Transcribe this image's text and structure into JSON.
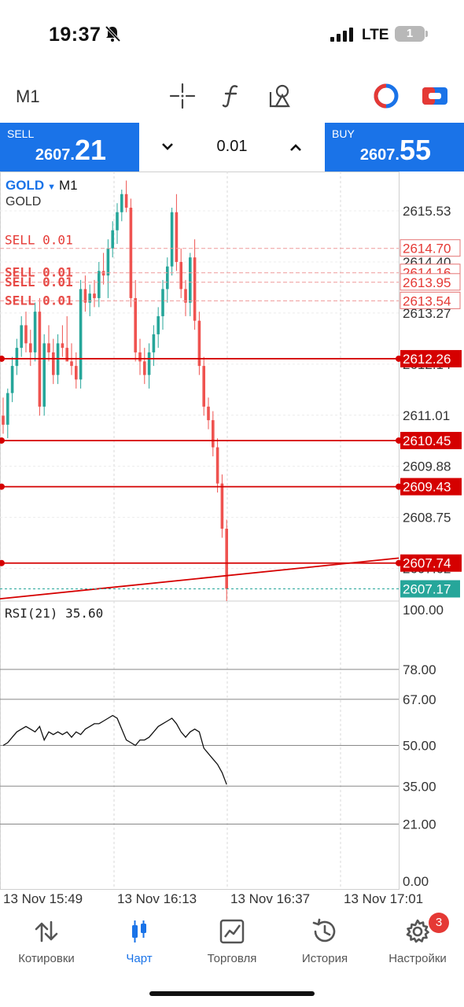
{
  "status_bar": {
    "time": "19:37",
    "network": "LTE",
    "battery": "1"
  },
  "toolbar": {
    "timeframe": "M1"
  },
  "trade": {
    "sell_label": "SELL",
    "sell_price_small": "2607.",
    "sell_price_big": "21",
    "lot": "0.01",
    "buy_label": "BUY",
    "buy_price_small": "2607.",
    "buy_price_big": "55"
  },
  "chart": {
    "symbol": "GOLD",
    "timeframe": "M1",
    "description": "GOLD",
    "sell_order_label": "SELL 0.01",
    "rsi_label": "RSI(21) 35.60"
  },
  "chart_data": {
    "type": "candlestick",
    "price_axis_labels": [
      "2615.53",
      "2614.40",
      "2613.27",
      "2612.14",
      "2611.01",
      "2609.88",
      "2608.75",
      "2607.62"
    ],
    "price_ylim": [
      2606.9,
      2616.4
    ],
    "order_tags": [
      {
        "price": "2614.70",
        "kind": "outline"
      },
      {
        "price": "2614.16",
        "kind": "outline"
      },
      {
        "price": "2613.95",
        "kind": "outline"
      },
      {
        "price": "2613.54",
        "kind": "outline"
      },
      {
        "price": "2612.26",
        "kind": "filled"
      },
      {
        "price": "2610.45",
        "kind": "filled"
      },
      {
        "price": "2609.43",
        "kind": "filled"
      },
      {
        "price": "2607.74",
        "kind": "filled"
      }
    ],
    "current_price": "2607.17",
    "candles": [
      [
        2611.0,
        2611.4,
        2610.6,
        2610.8
      ],
      [
        2610.8,
        2611.6,
        2610.5,
        2611.5
      ],
      [
        2611.5,
        2612.3,
        2611.3,
        2612.1
      ],
      [
        2612.1,
        2612.7,
        2611.9,
        2612.5
      ],
      [
        2612.5,
        2613.2,
        2612.3,
        2613.0
      ],
      [
        2613.0,
        2613.3,
        2612.4,
        2612.6
      ],
      [
        2612.6,
        2612.9,
        2612.1,
        2612.4
      ],
      [
        2612.4,
        2613.5,
        2612.2,
        2613.3
      ],
      [
        2613.3,
        2613.6,
        2611.0,
        2611.2
      ],
      [
        2611.2,
        2612.8,
        2611.0,
        2612.6
      ],
      [
        2612.6,
        2613.0,
        2612.2,
        2612.4
      ],
      [
        2612.4,
        2612.7,
        2611.7,
        2611.9
      ],
      [
        2611.9,
        2612.8,
        2611.7,
        2612.6
      ],
      [
        2612.6,
        2613.0,
        2612.3,
        2612.5
      ],
      [
        2612.5,
        2613.2,
        2612.2,
        2612.2
      ],
      [
        2612.2,
        2612.6,
        2611.9,
        2612.1
      ],
      [
        2612.1,
        2612.4,
        2611.6,
        2611.8
      ],
      [
        2611.8,
        2614.0,
        2611.6,
        2613.8
      ],
      [
        2613.8,
        2614.1,
        2613.3,
        2613.5
      ],
      [
        2613.5,
        2613.9,
        2613.2,
        2613.7
      ],
      [
        2613.7,
        2614.0,
        2613.4,
        2613.6
      ],
      [
        2613.6,
        2614.4,
        2613.4,
        2614.2
      ],
      [
        2614.2,
        2614.6,
        2613.9,
        2614.1
      ],
      [
        2614.1,
        2614.9,
        2613.6,
        2614.7
      ],
      [
        2614.7,
        2615.3,
        2614.5,
        2615.1
      ],
      [
        2615.1,
        2615.7,
        2614.8,
        2615.5
      ],
      [
        2615.5,
        2616.0,
        2615.3,
        2615.9
      ],
      [
        2615.9,
        2616.2,
        2615.5,
        2615.6
      ],
      [
        2615.6,
        2615.8,
        2613.4,
        2613.6
      ],
      [
        2613.6,
        2614.0,
        2612.2,
        2612.4
      ],
      [
        2612.4,
        2612.7,
        2611.9,
        2612.2
      ],
      [
        2612.2,
        2612.5,
        2611.7,
        2611.9
      ],
      [
        2611.9,
        2612.6,
        2611.6,
        2612.4
      ],
      [
        2612.4,
        2613.0,
        2612.1,
        2612.8
      ],
      [
        2612.8,
        2613.4,
        2612.5,
        2613.2
      ],
      [
        2613.2,
        2614.0,
        2612.9,
        2613.8
      ],
      [
        2613.8,
        2614.5,
        2613.5,
        2614.3
      ],
      [
        2614.3,
        2615.6,
        2614.1,
        2615.5
      ],
      [
        2615.5,
        2615.9,
        2614.2,
        2614.4
      ],
      [
        2614.4,
        2614.7,
        2613.6,
        2613.8
      ],
      [
        2613.8,
        2614.0,
        2613.2,
        2613.5
      ],
      [
        2613.5,
        2614.6,
        2613.2,
        2614.5
      ],
      [
        2614.5,
        2614.9,
        2612.9,
        2613.1
      ],
      [
        2613.1,
        2613.3,
        2611.9,
        2612.1
      ],
      [
        2612.1,
        2612.3,
        2611.0,
        2611.2
      ],
      [
        2611.2,
        2611.4,
        2610.7,
        2610.9
      ],
      [
        2610.9,
        2611.1,
        2610.1,
        2610.3
      ],
      [
        2610.3,
        2610.5,
        2609.3,
        2609.5
      ],
      [
        2609.5,
        2609.7,
        2608.3,
        2608.5
      ],
      [
        2608.5,
        2608.7,
        2606.9,
        2607.17
      ]
    ],
    "trend_line": {
      "from_price": 2606.95,
      "to_price": 2607.85
    },
    "rsi": {
      "name": "RSI(21)",
      "value": "35.60",
      "axis_labels": [
        "100.00",
        "78.00",
        "67.00",
        "50.00",
        "35.00",
        "21.00",
        "0.00"
      ],
      "levels": [
        78,
        67,
        50,
        35,
        21
      ],
      "ylim": [
        0,
        100
      ],
      "values": [
        50,
        51,
        53,
        55,
        56,
        57,
        56,
        55,
        57,
        52,
        55,
        54,
        55,
        54,
        55,
        53,
        55,
        54,
        56,
        57,
        58,
        58,
        59,
        60,
        61,
        60,
        56,
        52,
        51,
        50,
        52,
        52,
        53,
        55,
        57,
        58,
        59,
        60,
        58,
        55,
        53,
        55,
        56,
        55,
        49,
        47,
        45,
        43,
        40,
        35.6
      ]
    },
    "time_labels": [
      "13 Nov 15:49",
      "13 Nov 16:13",
      "13 Nov 16:37",
      "13 Nov 17:01"
    ]
  },
  "nav": {
    "items": [
      {
        "label": "Котировки",
        "icon": "quotes-arrows-icon"
      },
      {
        "label": "Чарт",
        "icon": "candles-icon"
      },
      {
        "label": "Торговля",
        "icon": "trade-chart-icon"
      },
      {
        "label": "История",
        "icon": "history-clock-icon"
      },
      {
        "label": "Настройки",
        "icon": "gear-icon"
      }
    ],
    "settings_badge": "3"
  },
  "colors": {
    "accent": "#1a73e8",
    "bull": "#26a69a",
    "bear": "#ef5350",
    "order_line": "#d50000",
    "current_price": "#26a69a"
  }
}
